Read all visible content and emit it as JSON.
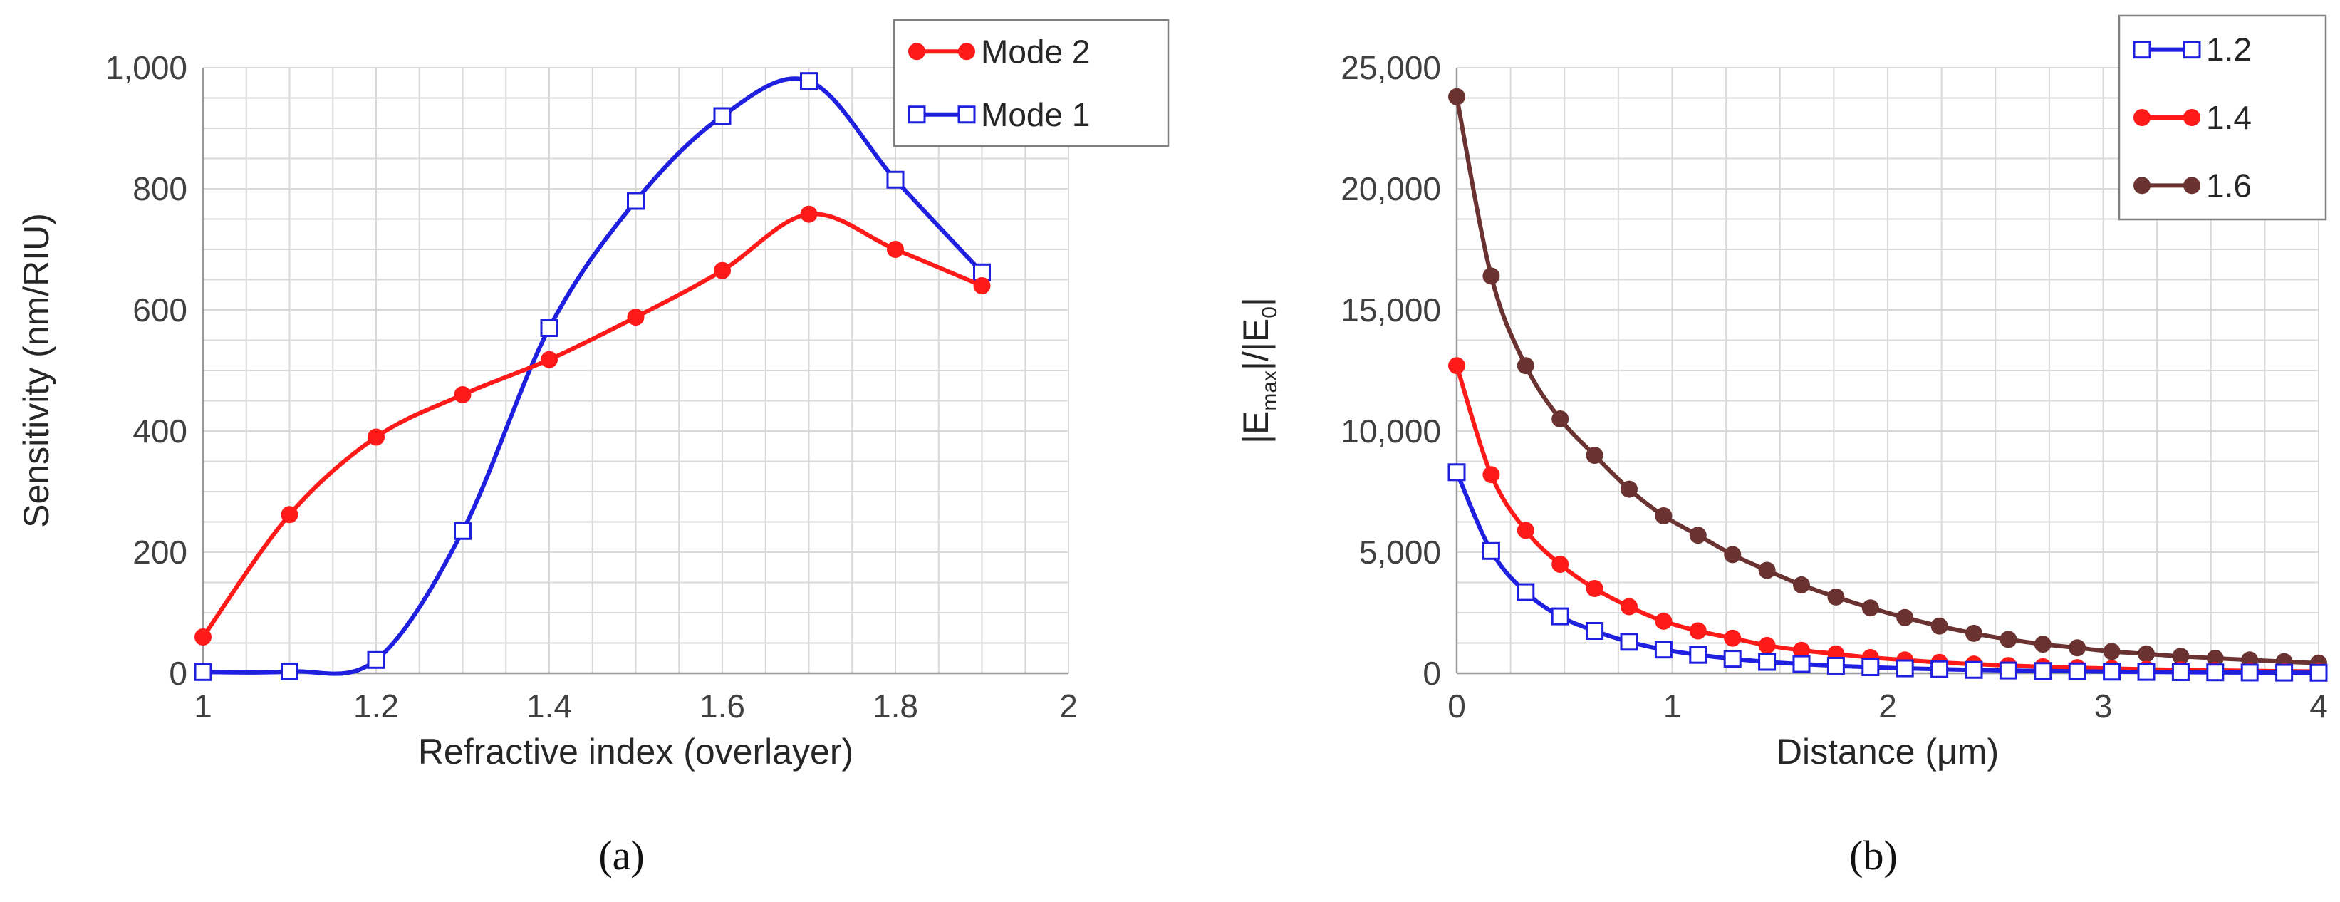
{
  "chart_data": [
    {
      "id": "a",
      "type": "line",
      "caption": "(a)",
      "xlabel": "Refractive index (overlayer)",
      "ylabel": "Sensitivity (nm/RIU)",
      "xlim": [
        1,
        2
      ],
      "ylim": [
        0,
        1000
      ],
      "xticks": [
        1,
        1.2,
        1.4,
        1.6,
        1.8,
        2
      ],
      "xtick_labels": [
        "1",
        "1.2",
        "1.4",
        "1.6",
        "1.8",
        "2"
      ],
      "yticks": [
        0,
        200,
        400,
        600,
        800,
        1000
      ],
      "ytick_labels": [
        "0",
        "200",
        "400",
        "600",
        "800",
        "1,000"
      ],
      "grid": true,
      "legend_position": "top-right",
      "series": [
        {
          "name": "Mode 2",
          "color": "#ff1a1a",
          "marker": "filled-circle",
          "x": [
            1.0,
            1.1,
            1.2,
            1.3,
            1.4,
            1.5,
            1.6,
            1.7,
            1.8,
            1.9
          ],
          "y": [
            60,
            262,
            390,
            460,
            518,
            588,
            665,
            758,
            700,
            640
          ]
        },
        {
          "name": "Mode 1",
          "color": "#1f1fe0",
          "marker": "open-square",
          "x": [
            1.0,
            1.1,
            1.2,
            1.3,
            1.4,
            1.5,
            1.6,
            1.7,
            1.8,
            1.9
          ],
          "y": [
            2,
            3,
            22,
            235,
            570,
            780,
            920,
            978,
            815,
            662
          ]
        }
      ]
    },
    {
      "id": "b",
      "type": "line",
      "caption": "(b)",
      "xlabel": "Distance (μm)",
      "ylabel": "|Emax|/|E0|",
      "ylabel_parts": {
        "pre": "|E",
        "sub1": "max",
        "mid": "|/|E",
        "sub2": "0",
        "post": "|"
      },
      "xlim": [
        0,
        4
      ],
      "ylim": [
        0,
        25000
      ],
      "xticks": [
        0,
        1,
        2,
        3,
        4
      ],
      "xtick_labels": [
        "0",
        "1",
        "2",
        "3",
        "4"
      ],
      "yticks": [
        0,
        5000,
        10000,
        15000,
        20000,
        25000
      ],
      "ytick_labels": [
        "0",
        "5,000",
        "10,000",
        "15,000",
        "20,000",
        "25,000"
      ],
      "grid": true,
      "legend_position": "top-right",
      "series": [
        {
          "name": "1.2",
          "color": "#1f1fe0",
          "marker": "open-square",
          "x": [
            0.0,
            0.16,
            0.32,
            0.48,
            0.64,
            0.8,
            0.96,
            1.12,
            1.28,
            1.44,
            1.6,
            1.76,
            1.92,
            2.08,
            2.24,
            2.4,
            2.56,
            2.72,
            2.88,
            3.04,
            3.2,
            3.36,
            3.52,
            3.68,
            3.84,
            4.0
          ],
          "y": [
            8300,
            5050,
            3350,
            2350,
            1750,
            1300,
            980,
            760,
            600,
            470,
            380,
            310,
            250,
            205,
            170,
            140,
            115,
            95,
            80,
            65,
            55,
            45,
            38,
            32,
            27,
            22
          ]
        },
        {
          "name": "1.4",
          "color": "#ff1a1a",
          "marker": "filled-circle",
          "x": [
            0.0,
            0.16,
            0.32,
            0.48,
            0.64,
            0.8,
            0.96,
            1.12,
            1.28,
            1.44,
            1.6,
            1.76,
            1.92,
            2.08,
            2.24,
            2.4,
            2.56,
            2.72,
            2.88,
            3.04,
            3.2,
            3.36,
            3.52,
            3.68,
            3.84,
            4.0
          ],
          "y": [
            12700,
            8200,
            5900,
            4500,
            3500,
            2750,
            2150,
            1750,
            1450,
            1150,
            950,
            800,
            650,
            550,
            450,
            380,
            320,
            270,
            230,
            195,
            165,
            140,
            120,
            100,
            85,
            72
          ]
        },
        {
          "name": "1.6",
          "color": "#6b3232",
          "marker": "filled-circle",
          "x": [
            0.0,
            0.16,
            0.32,
            0.48,
            0.64,
            0.8,
            0.96,
            1.12,
            1.28,
            1.44,
            1.6,
            1.76,
            1.92,
            2.08,
            2.24,
            2.4,
            2.56,
            2.72,
            2.88,
            3.04,
            3.2,
            3.36,
            3.52,
            3.68,
            3.84,
            4.0
          ],
          "y": [
            23800,
            16400,
            12700,
            10500,
            9000,
            7600,
            6500,
            5700,
            4900,
            4250,
            3650,
            3150,
            2700,
            2300,
            1950,
            1650,
            1400,
            1200,
            1050,
            900,
            800,
            700,
            620,
            550,
            480,
            420
          ]
        }
      ]
    }
  ]
}
